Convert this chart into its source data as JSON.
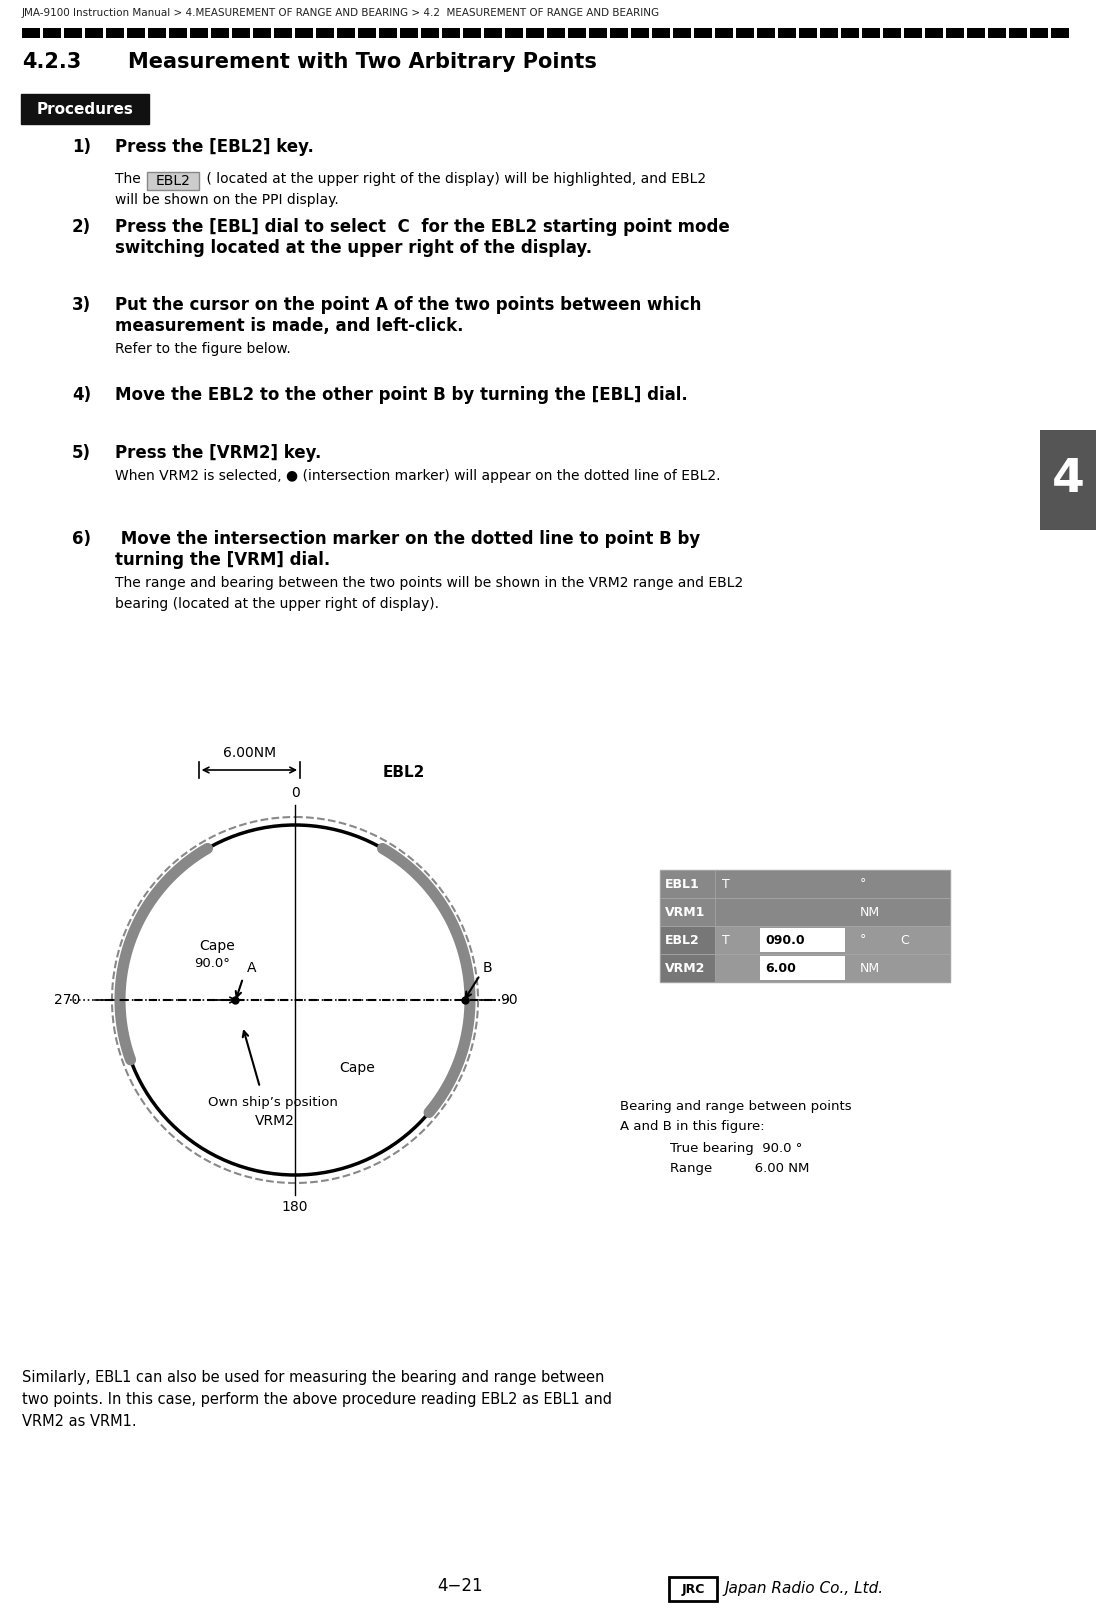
{
  "breadcrumb": "JMA-9100 Instruction Manual > 4.MEASUREMENT OF RANGE AND BEARING > 4.2  MEASUREMENT OF RANGE AND BEARING",
  "section_number": "4.2.3",
  "section_title": "Measurement with Two Arbitrary Points",
  "procedures_label": "Procedures",
  "bg_color": "#ffffff",
  "page_number": "4−21",
  "tab_color": "#555555",
  "ebl2_box_color": "#cccccc",
  "table_bg_dark": "#888888",
  "table_bg_mid": "#999999",
  "table_bg_highlight": "#bbbbbb",
  "table_cell_white": "#ffffff"
}
